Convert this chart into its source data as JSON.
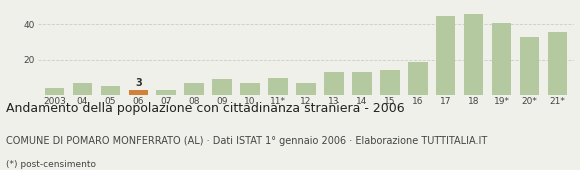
{
  "categories": [
    "2003",
    "04",
    "05",
    "06",
    "07",
    "08",
    "09",
    "10",
    "11*",
    "12",
    "13",
    "14",
    "15",
    "16",
    "17",
    "18",
    "19*",
    "20*",
    "21*"
  ],
  "values": [
    4,
    7,
    5,
    3,
    3,
    7,
    9,
    7,
    10,
    7,
    13,
    13,
    14,
    19,
    45,
    46,
    41,
    33,
    36
  ],
  "bar_colors": [
    "#b5c9a0",
    "#b5c9a0",
    "#b5c9a0",
    "#d2813a",
    "#b5c9a0",
    "#b5c9a0",
    "#b5c9a0",
    "#b5c9a0",
    "#b5c9a0",
    "#b5c9a0",
    "#b5c9a0",
    "#b5c9a0",
    "#b5c9a0",
    "#b5c9a0",
    "#b5c9a0",
    "#b5c9a0",
    "#b5c9a0",
    "#b5c9a0",
    "#b5c9a0"
  ],
  "highlighted_index": 3,
  "highlighted_label": "3",
  "ylim": [
    0,
    50
  ],
  "yticks": [
    20,
    40
  ],
  "title": "Andamento della popolazione con cittadinanza straniera - 2006",
  "subtitle": "COMUNE DI POMARO MONFERRATO (AL) · Dati ISTAT 1° gennaio 2006 · Elaborazione TUTTITALIA.IT",
  "footnote": "(*) post-censimento",
  "background_color": "#f0f0eb",
  "grid_color": "#cccccc",
  "title_fontsize": 9.0,
  "subtitle_fontsize": 7.0,
  "footnote_fontsize": 6.5,
  "tick_fontsize": 6.5
}
